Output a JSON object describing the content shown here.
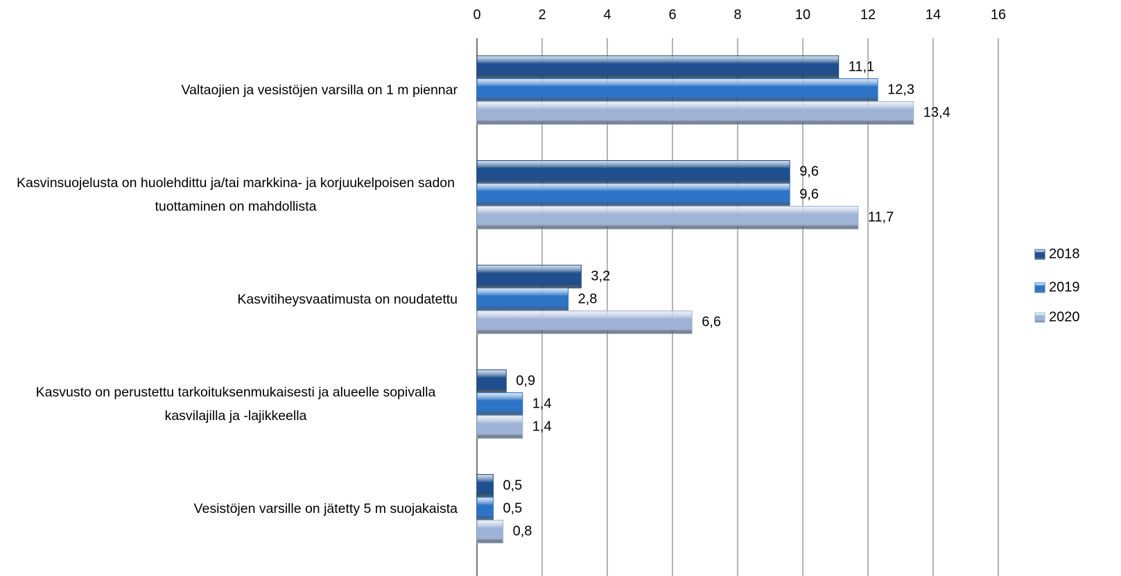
{
  "chart_data": {
    "type": "hbar",
    "categories": [
      "Valtaojien ja vesistöjen varsilla on 1 m piennar",
      "Kasvinsuojelusta on huolehdittu ja/tai markkina- ja korjuukelpoisen sadon tuottaminen on mahdollista",
      "Kasvitiheysvaatimusta on noudatettu",
      "Kasvusto on perustettu tarkoituksenmukaisesti ja alueelle sopivalla kasvilajilla ja -lajikkeella",
      "Vesistöjen varsille on jätetty 5 m suojakaista"
    ],
    "series": [
      {
        "name": "2018",
        "color": "#1f4f8f",
        "values": [
          11.1,
          9.6,
          3.2,
          0.9,
          0.5
        ],
        "value_labels": [
          "11,1",
          "9,6",
          "3,2",
          "0,9",
          "0,5"
        ]
      },
      {
        "name": "2019",
        "color": "#2d74c6",
        "values": [
          12.3,
          9.6,
          2.8,
          1.4,
          0.5
        ],
        "value_labels": [
          "12,3",
          "9,6",
          "2,8",
          "1,4",
          "0,5"
        ]
      },
      {
        "name": "2020",
        "color": "#9fb3d6",
        "values": [
          13.4,
          11.7,
          6.6,
          1.4,
          0.8
        ],
        "value_labels": [
          "13,4",
          "11,7",
          "6,6",
          "1,4",
          "0,8"
        ]
      }
    ],
    "xlim": [
      0,
      16
    ],
    "xticks": [
      0,
      2,
      4,
      6,
      8,
      10,
      12,
      14,
      16
    ],
    "grid": true,
    "legend": "right"
  }
}
